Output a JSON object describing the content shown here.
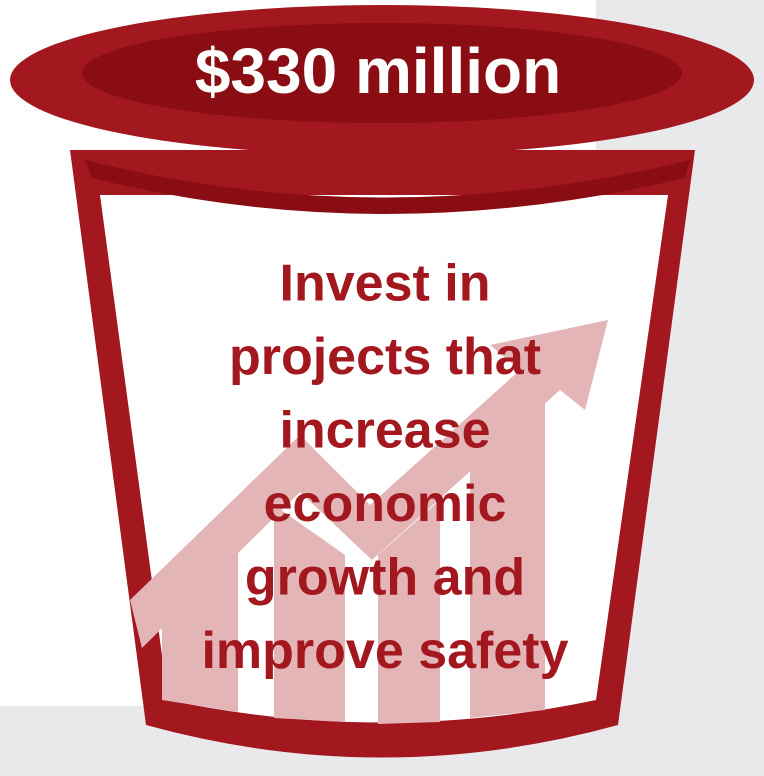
{
  "header": {
    "amount": "$330 million"
  },
  "body": {
    "lines": [
      "Invest in",
      "projects that",
      "increase",
      "economic",
      "growth and",
      "improve safety"
    ]
  }
}
